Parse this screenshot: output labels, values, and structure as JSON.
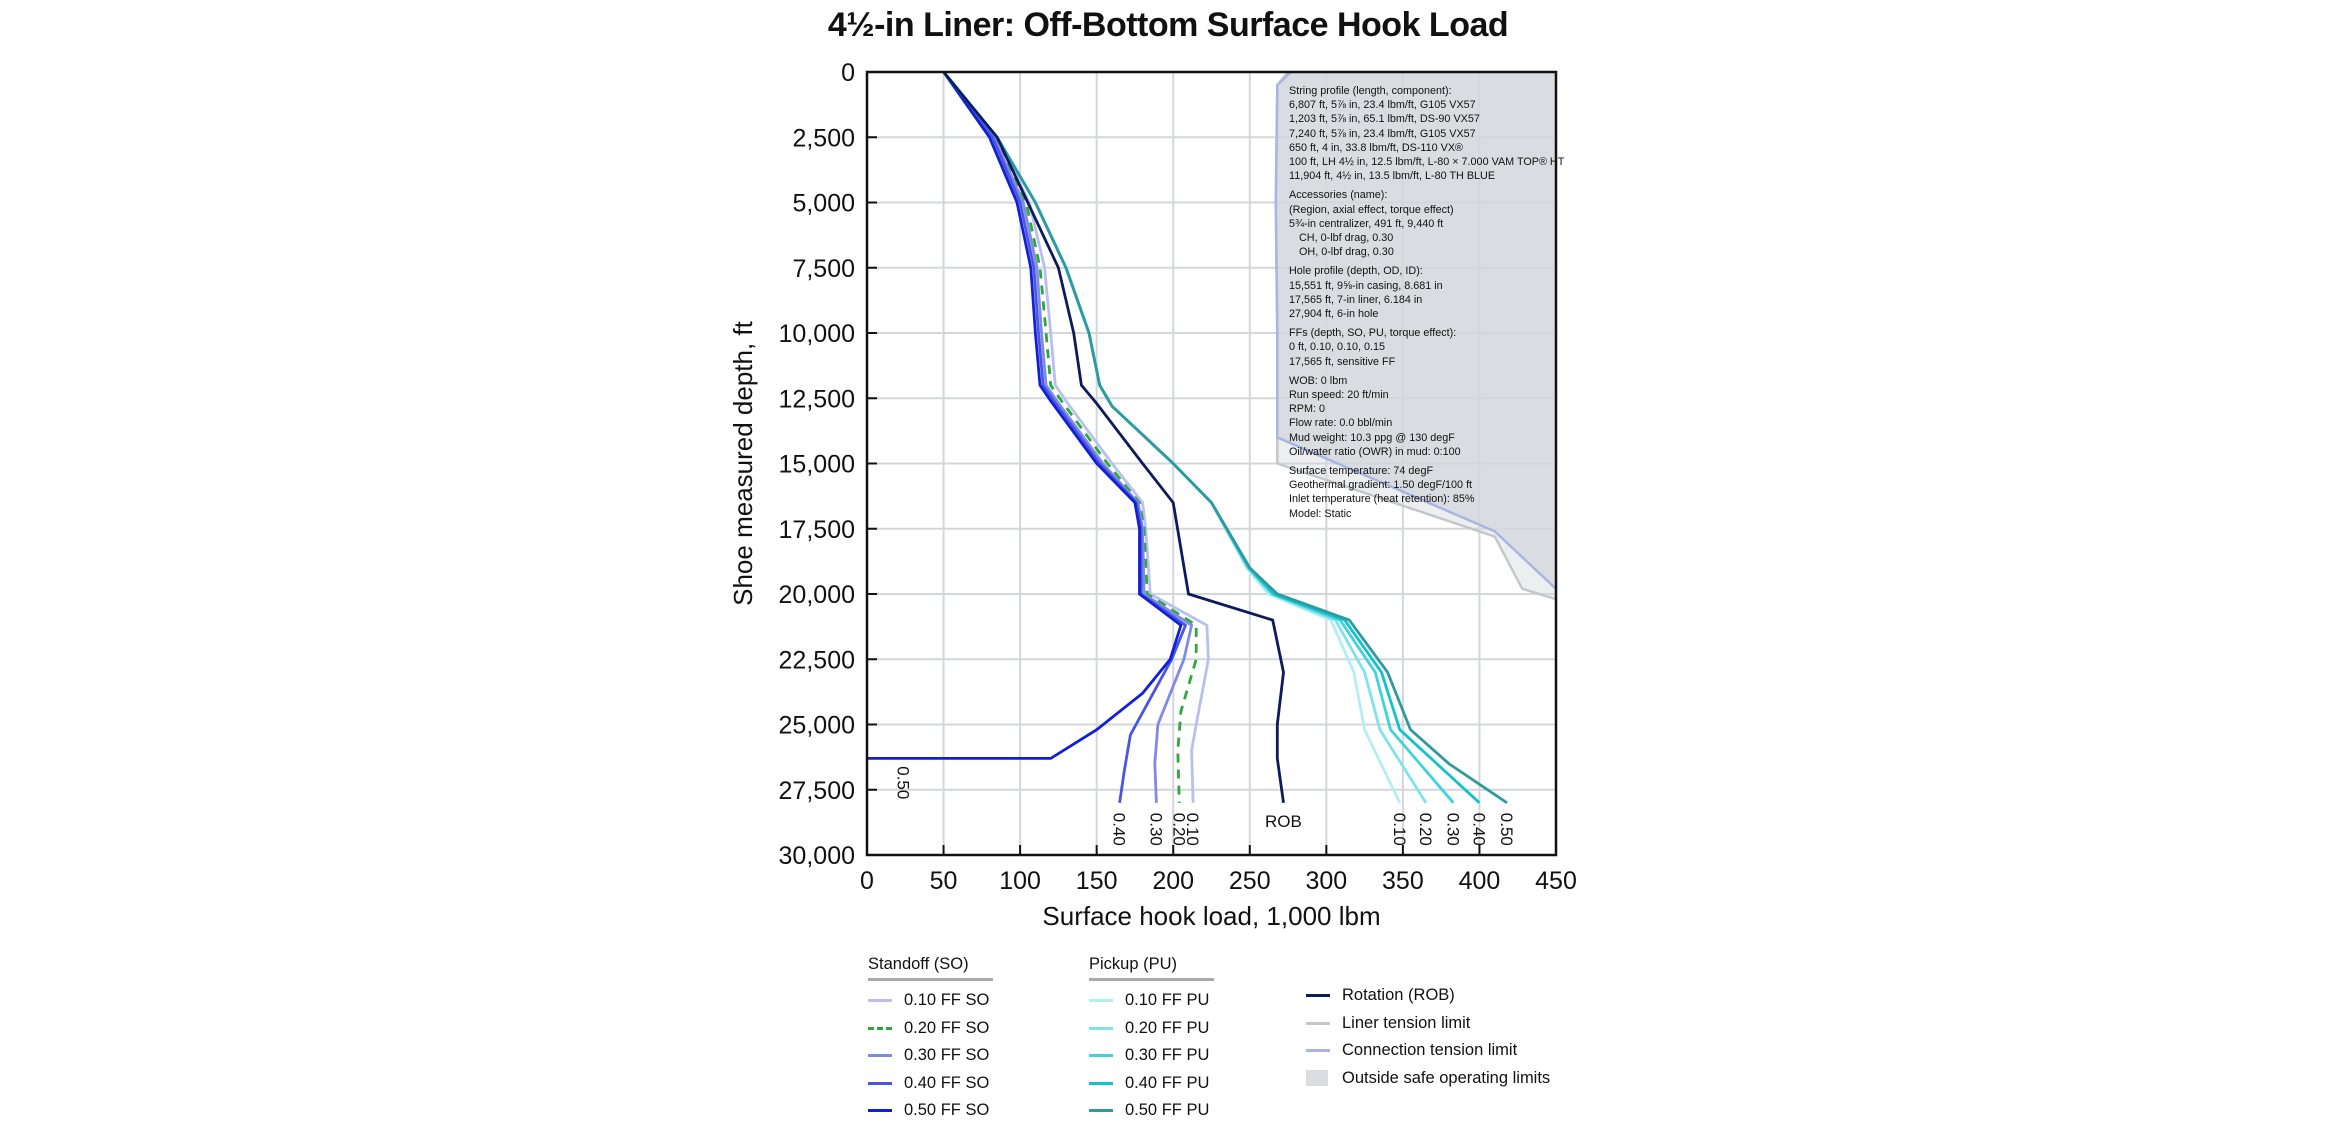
{
  "chart_data": {
    "type": "line",
    "title": "4½-in Liner: Off-Bottom Surface Hook Load",
    "xlabel": "Surface hook load, 1,000 lbm",
    "ylabel": "Shoe measured depth, ft",
    "xlim": [
      0,
      450
    ],
    "ylim": [
      30000,
      0
    ],
    "y_inverted": true,
    "grid": true,
    "x_ticks": [
      "0",
      "50",
      "100",
      "150",
      "200",
      "250",
      "300",
      "350",
      "400",
      "450"
    ],
    "y_ticks": [
      "0",
      "2,500",
      "5,000",
      "7,500",
      "10,000",
      "12,500",
      "15,000",
      "17,500",
      "20,000",
      "22,500",
      "25,000",
      "27,500",
      "30,000"
    ],
    "series": [
      {
        "name": "0.10 FF SO",
        "color": "#b9bff0",
        "dash": false,
        "label": "0.10",
        "points": [
          [
            50,
            0
          ],
          [
            85,
            2500
          ],
          [
            106,
            5000
          ],
          [
            116,
            7500
          ],
          [
            120,
            10000
          ],
          [
            123,
            12000
          ],
          [
            130,
            12600
          ],
          [
            160,
            15000
          ],
          [
            180,
            16500
          ],
          [
            182,
            17500
          ],
          [
            185,
            20000
          ],
          [
            222,
            21200
          ],
          [
            223,
            22500
          ],
          [
            215,
            25000
          ],
          [
            212,
            26000
          ],
          [
            213,
            28000
          ]
        ]
      },
      {
        "name": "0.20 FF SO",
        "color": "#2ea836",
        "dash": true,
        "label": "0.20",
        "points": [
          [
            50,
            0
          ],
          [
            84,
            2500
          ],
          [
            104,
            5000
          ],
          [
            113,
            7500
          ],
          [
            117,
            10000
          ],
          [
            120,
            12000
          ],
          [
            127,
            12600
          ],
          [
            157,
            15000
          ],
          [
            178,
            16500
          ],
          [
            181,
            17500
          ],
          [
            183,
            20000
          ],
          [
            215,
            21200
          ],
          [
            215,
            22500
          ],
          [
            205,
            24500
          ],
          [
            203,
            26000
          ],
          [
            204,
            28000
          ]
        ]
      },
      {
        "name": "0.30 FF SO",
        "color": "#7f8ae6",
        "dash": false,
        "label": "0.30",
        "points": [
          [
            50,
            0
          ],
          [
            83,
            2500
          ],
          [
            102,
            5000
          ],
          [
            111,
            7500
          ],
          [
            114,
            10000
          ],
          [
            117,
            12000
          ],
          [
            124,
            12600
          ],
          [
            154,
            15000
          ],
          [
            177,
            16500
          ],
          [
            180,
            17500
          ],
          [
            181,
            20000
          ],
          [
            212,
            21200
          ],
          [
            207,
            22500
          ],
          [
            190,
            25000
          ],
          [
            188,
            26500
          ],
          [
            189,
            28000
          ]
        ]
      },
      {
        "name": "0.40 FF SO",
        "color": "#4a55e0",
        "dash": false,
        "label": "0.40",
        "points": [
          [
            50,
            0
          ],
          [
            82,
            2500
          ],
          [
            100,
            5000
          ],
          [
            109,
            7500
          ],
          [
            112,
            10000
          ],
          [
            115,
            12000
          ],
          [
            122,
            12600
          ],
          [
            152,
            15000
          ],
          [
            176,
            16500
          ],
          [
            179,
            17500
          ],
          [
            179,
            20000
          ],
          [
            208,
            21200
          ],
          [
            199,
            22500
          ],
          [
            172,
            25400
          ],
          [
            168,
            26800
          ],
          [
            165,
            28000
          ]
        ]
      },
      {
        "name": "0.50 FF SO",
        "color": "#1020d8",
        "dash": false,
        "label": "0.50",
        "points": [
          [
            50,
            0
          ],
          [
            80,
            2500
          ],
          [
            98,
            5000
          ],
          [
            107,
            7500
          ],
          [
            110,
            10000
          ],
          [
            113,
            12000
          ],
          [
            120,
            12600
          ],
          [
            150,
            15000
          ],
          [
            175,
            16500
          ],
          [
            178,
            17500
          ],
          [
            178,
            20000
          ],
          [
            205,
            21200
          ],
          [
            198,
            22500
          ],
          [
            180,
            23800
          ],
          [
            150,
            25200
          ],
          [
            120,
            26300
          ],
          [
            0,
            26300
          ]
        ]
      },
      {
        "name": "0.10 FF PU",
        "color": "#b4eef2",
        "dash": false,
        "label": "0.10",
        "points": [
          [
            50,
            0
          ],
          [
            85,
            2500
          ],
          [
            110,
            5000
          ],
          [
            130,
            7500
          ],
          [
            145,
            10000
          ],
          [
            152,
            12000
          ],
          [
            160,
            12800
          ],
          [
            200,
            15000
          ],
          [
            225,
            16500
          ],
          [
            248,
            19000
          ],
          [
            262,
            20000
          ],
          [
            303,
            21000
          ],
          [
            318,
            23000
          ],
          [
            325,
            25200
          ],
          [
            348,
            28000
          ]
        ]
      },
      {
        "name": "0.20 FF PU",
        "color": "#7ee3ea",
        "dash": false,
        "label": "0.20",
        "points": [
          [
            50,
            0
          ],
          [
            85,
            2500
          ],
          [
            110,
            5000
          ],
          [
            130,
            7500
          ],
          [
            145,
            10000
          ],
          [
            152,
            12000
          ],
          [
            160,
            12800
          ],
          [
            200,
            15000
          ],
          [
            225,
            16500
          ],
          [
            249,
            19000
          ],
          [
            264,
            20000
          ],
          [
            306,
            21000
          ],
          [
            325,
            23000
          ],
          [
            335,
            25200
          ],
          [
            365,
            28000
          ]
        ]
      },
      {
        "name": "0.30 FF PU",
        "color": "#3fd3dc",
        "dash": false,
        "label": "0.30",
        "points": [
          [
            50,
            0
          ],
          [
            85,
            2500
          ],
          [
            110,
            5000
          ],
          [
            130,
            7500
          ],
          [
            145,
            10000
          ],
          [
            152,
            12000
          ],
          [
            160,
            12800
          ],
          [
            200,
            15000
          ],
          [
            225,
            16500
          ],
          [
            249,
            19000
          ],
          [
            265,
            20000
          ],
          [
            309,
            21000
          ],
          [
            332,
            23000
          ],
          [
            342,
            25200
          ],
          [
            383,
            28000
          ]
        ]
      },
      {
        "name": "0.40 FF PU",
        "color": "#12c3cc",
        "dash": false,
        "label": "0.40",
        "points": [
          [
            50,
            0
          ],
          [
            85,
            2500
          ],
          [
            110,
            5000
          ],
          [
            130,
            7500
          ],
          [
            145,
            10000
          ],
          [
            152,
            12000
          ],
          [
            160,
            12800
          ],
          [
            200,
            15000
          ],
          [
            225,
            16500
          ],
          [
            250,
            19000
          ],
          [
            266,
            20000
          ],
          [
            312,
            21000
          ],
          [
            336,
            23000
          ],
          [
            348,
            25200
          ],
          [
            400,
            28000
          ]
        ]
      },
      {
        "name": "0.50 FF PU",
        "color": "#2f9aa0",
        "dash": false,
        "label": "0.50",
        "points": [
          [
            50,
            0
          ],
          [
            85,
            2500
          ],
          [
            110,
            5000
          ],
          [
            130,
            7500
          ],
          [
            145,
            10000
          ],
          [
            152,
            12000
          ],
          [
            160,
            12800
          ],
          [
            200,
            15000
          ],
          [
            225,
            16500
          ],
          [
            250,
            19000
          ],
          [
            268,
            20000
          ],
          [
            315,
            21000
          ],
          [
            340,
            23000
          ],
          [
            355,
            25200
          ],
          [
            380,
            26500
          ],
          [
            418,
            28000
          ]
        ]
      },
      {
        "name": "Rotation (ROB)",
        "color": "#0d1a5c",
        "dash": false,
        "label": "ROB",
        "points": [
          [
            50,
            0
          ],
          [
            85,
            2500
          ],
          [
            105,
            5000
          ],
          [
            125,
            7500
          ],
          [
            135,
            10000
          ],
          [
            140,
            12000
          ],
          [
            150,
            12700
          ],
          [
            180,
            15000
          ],
          [
            200,
            16500
          ],
          [
            210,
            20000
          ],
          [
            265,
            21000
          ],
          [
            272,
            23000
          ],
          [
            268,
            25000
          ],
          [
            268,
            26300
          ],
          [
            272,
            28000
          ]
        ]
      },
      {
        "name": "Liner tension limit",
        "color": "#c4c7ca",
        "dash": false,
        "points": [
          [
            275,
            0
          ],
          [
            268,
            500
          ],
          [
            267,
            5000
          ],
          [
            268,
            10000
          ],
          [
            268,
            15000
          ],
          [
            410,
            17800
          ],
          [
            428,
            19800
          ],
          [
            450,
            20200
          ]
        ]
      },
      {
        "name": "Connection tension limit",
        "color": "#a9b4e4",
        "dash": false,
        "points": [
          [
            277,
            0
          ],
          [
            268,
            500
          ],
          [
            267,
            5000
          ],
          [
            268,
            10000
          ],
          [
            268,
            14000
          ],
          [
            410,
            17600
          ],
          [
            450,
            19800
          ]
        ]
      }
    ],
    "shaded_region": {
      "name": "Outside safe operating limits",
      "color": "#d9dde1"
    },
    "legend": {
      "position": "below",
      "standoff_header": "Standoff (SO)",
      "pickup_header": "Pickup (PU)",
      "standoff": [
        {
          "label": "0.10 FF SO",
          "color": "#b9bff0",
          "dash": false
        },
        {
          "label": "0.20 FF SO",
          "color": "#2ea836",
          "dash": true
        },
        {
          "label": "0.30 FF SO",
          "color": "#7f8ae6",
          "dash": false
        },
        {
          "label": "0.40 FF SO",
          "color": "#4a55e0",
          "dash": false
        },
        {
          "label": "0.50 FF SO",
          "color": "#1020d8",
          "dash": false
        }
      ],
      "pickup": [
        {
          "label": "0.10 FF PU",
          "color": "#b4eef2"
        },
        {
          "label": "0.20 FF PU",
          "color": "#7ee3ea"
        },
        {
          "label": "0.30 FF PU",
          "color": "#3fd3dc"
        },
        {
          "label": "0.40 FF PU",
          "color": "#12c3cc"
        },
        {
          "label": "0.50 FF PU",
          "color": "#2f9aa0"
        }
      ],
      "other": [
        {
          "label": "Rotation (ROB)",
          "color": "#0d1a5c",
          "kind": "line"
        },
        {
          "label": "Liner tension limit",
          "color": "#c4c7ca",
          "kind": "line"
        },
        {
          "label": "Connection tension limit",
          "color": "#a9b4e4",
          "kind": "line"
        },
        {
          "label": "Outside safe operating limits",
          "color": "#d9dde1",
          "kind": "box"
        }
      ]
    },
    "annotations": {
      "string_profile": {
        "header": "String profile (length, component):",
        "lines": [
          "6,807 ft, 5⅞ in, 23.4 lbm/ft, G105 VX57",
          "1,203 ft, 5⅞ in, 65.1 lbm/ft, DS-90 VX57",
          "7,240 ft, 5⅞ in, 23.4 lbm/ft, G105 VX57",
          "650 ft, 4 in, 33.8 lbm/ft, DS-110 VX®",
          "100 ft, LH 4½ in, 12.5 lbm/ft, L-80 × 7.000 VAM TOP® HT",
          "11,904 ft, 4½ in, 13.5 lbm/ft, L-80 TH BLUE"
        ]
      },
      "accessories": {
        "header": "Accessories (name):",
        "lines": [
          "(Region, axial effect, torque effect)",
          "5¾-in centralizer, 491 ft, 9,440 ft"
        ],
        "indented": [
          "CH, 0-lbf drag, 0.30",
          "OH, 0-lbf drag, 0.30"
        ]
      },
      "hole_profile": {
        "header": "Hole profile (depth, OD, ID):",
        "lines": [
          "15,551 ft, 9⅝-in casing, 8.681 in",
          "17,565 ft, 7-in liner, 6.184 in",
          "27,904 ft, 6-in hole"
        ]
      },
      "ffs": {
        "header": "FFs (depth, SO, PU, torque effect):",
        "lines": [
          "0 ft, 0.10, 0.10, 0.15",
          "17,565 ft, sensitive FF"
        ]
      },
      "operating": {
        "lines": [
          "WOB: 0 lbm",
          "Run speed: 20 ft/min",
          "RPM: 0",
          "Flow rate: 0.0 bbl/min",
          "Mud weight: 10.3 ppg @ 130 degF",
          "Oil/water ratio (OWR) in mud: 0:100"
        ]
      },
      "thermal": {
        "lines": [
          "Surface temperature: 74 degF",
          "Geothermal gradient: 1.50 degF/100 ft",
          "Inlet temperature (heat retention): 85%",
          "Model: Static"
        ]
      }
    }
  }
}
